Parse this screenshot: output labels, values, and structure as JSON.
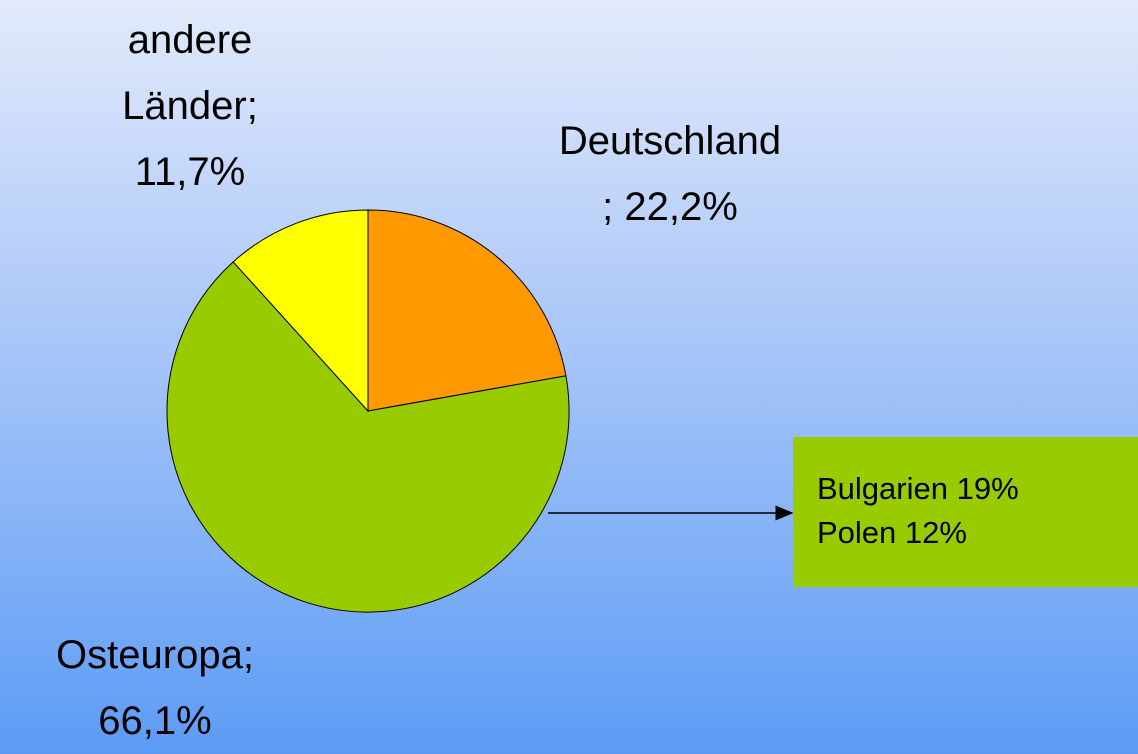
{
  "chart_data": {
    "type": "pie",
    "categories": [
      "Deutschland",
      "Osteuropa",
      "andere Länder"
    ],
    "values": [
      22.2,
      66.1,
      11.7
    ],
    "value_labels": [
      "22,2%",
      "66,1%",
      "11,7%"
    ],
    "label_separator": ";",
    "colors": [
      "#ff9900",
      "#99cc00",
      "#ffff00"
    ],
    "annotation": {
      "lines": [
        "Bulgarien 19%",
        "Polen 12%"
      ],
      "color": "#99cc00"
    }
  }
}
